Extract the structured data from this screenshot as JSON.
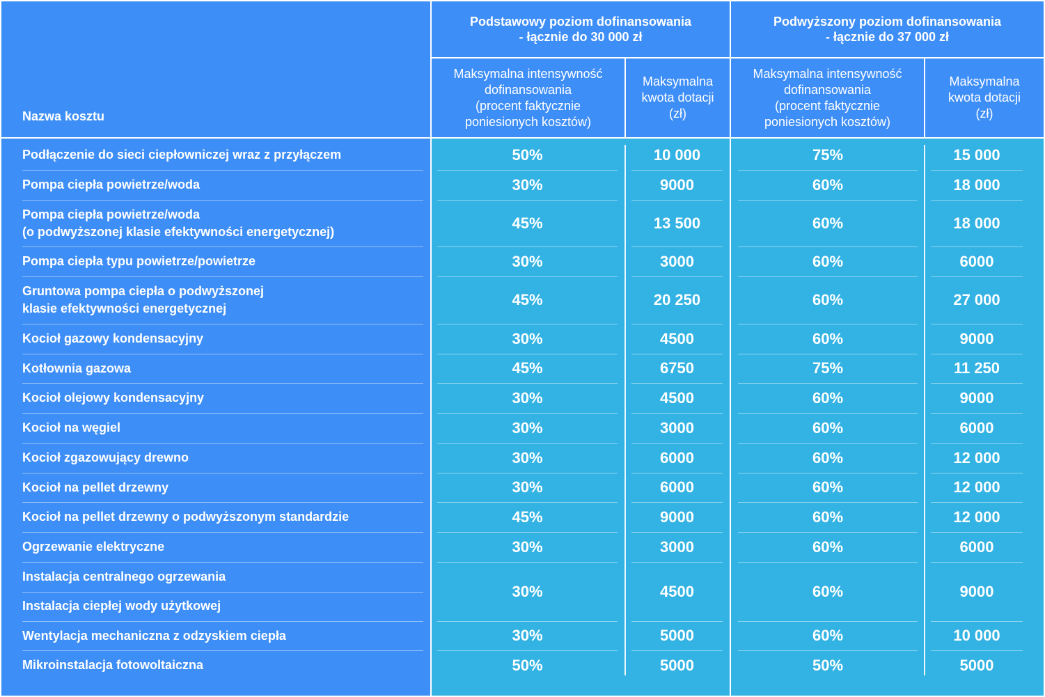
{
  "header": {
    "name_col": "Nazwa kosztu",
    "group_basic": [
      "Podstawowy poziom dofinansowania",
      "- łącznie do 30 000 zł"
    ],
    "group_increased": [
      "Podwyższony poziom dofinansowania",
      "- łącznie do 37 000 zł"
    ],
    "intensity_label": [
      "Maksymalna intensywność",
      "dofinansowania",
      "(procent faktycznie",
      "poniesionych kosztów)"
    ],
    "amount_label": [
      "Maksymalna",
      "kwota dotacji",
      "(zł)"
    ]
  },
  "rows": [
    {
      "name": [
        "Podłączenie do sieci ciepłowniczej wraz z przyłączem"
      ],
      "b_pct": "50%",
      "b_amt": "10 000",
      "i_pct": "75%",
      "i_amt": "15 000"
    },
    {
      "name": [
        "Pompa ciepła powietrze/woda"
      ],
      "b_pct": "30%",
      "b_amt": "9000",
      "i_pct": "60%",
      "i_amt": "18 000"
    },
    {
      "name": [
        "Pompa ciepła powietrze/woda",
        "(o podwyższonej klasie efektywności energetycznej)"
      ],
      "b_pct": "45%",
      "b_amt": "13 500",
      "i_pct": "60%",
      "i_amt": "18 000"
    },
    {
      "name": [
        "Pompa ciepła typu powietrze/powietrze"
      ],
      "b_pct": "30%",
      "b_amt": "3000",
      "i_pct": "60%",
      "i_amt": "6000"
    },
    {
      "name": [
        "Gruntowa pompa ciepła o podwyższonej",
        "klasie efektywności energetycznej"
      ],
      "b_pct": "45%",
      "b_amt": "20 250",
      "i_pct": "60%",
      "i_amt": "27 000"
    },
    {
      "name": [
        "Kocioł gazowy kondensacyjny"
      ],
      "b_pct": "30%",
      "b_amt": "4500",
      "i_pct": "60%",
      "i_amt": "9000"
    },
    {
      "name": [
        "Kotłownia gazowa"
      ],
      "b_pct": "45%",
      "b_amt": "6750",
      "i_pct": "75%",
      "i_amt": "11 250"
    },
    {
      "name": [
        "Kocioł olejowy kondensacyjny"
      ],
      "b_pct": "30%",
      "b_amt": "4500",
      "i_pct": "60%",
      "i_amt": "9000"
    },
    {
      "name": [
        "Kocioł na węgiel"
      ],
      "b_pct": "30%",
      "b_amt": "3000",
      "i_pct": "60%",
      "i_amt": "6000"
    },
    {
      "name": [
        "Kocioł zgazowujący drewno"
      ],
      "b_pct": "30%",
      "b_amt": "6000",
      "i_pct": "60%",
      "i_amt": "12 000"
    },
    {
      "name": [
        "Kocioł na pellet drzewny"
      ],
      "b_pct": "30%",
      "b_amt": "6000",
      "i_pct": "60%",
      "i_amt": "12 000"
    },
    {
      "name": [
        "Kocioł na pellet drzewny o podwyższonym standardzie"
      ],
      "b_pct": "45%",
      "b_amt": "9000",
      "i_pct": "60%",
      "i_amt": "12 000"
    },
    {
      "name": [
        "Ogrzewanie elektryczne"
      ],
      "b_pct": "30%",
      "b_amt": "3000",
      "i_pct": "60%",
      "i_amt": "6000"
    },
    {
      "name": [
        "Instalacja centralnego ogrzewania",
        "Instalacja ciepłej wody użytkowej"
      ],
      "b_pct": "30%",
      "b_amt": "4500",
      "i_pct": "60%",
      "i_amt": "9000"
    },
    {
      "name": [
        "Wentylacja mechaniczna z odzyskiem ciepła"
      ],
      "b_pct": "30%",
      "b_amt": "5000",
      "i_pct": "60%",
      "i_amt": "10 000"
    },
    {
      "name": [
        "Mikroinstalacja fotowoltaiczna"
      ],
      "b_pct": "50%",
      "b_amt": "5000",
      "i_pct": "50%",
      "i_amt": "5000"
    }
  ],
  "colors": {
    "header_blue": "#3e8ef7",
    "body_cyan": "#33b3e4",
    "text": "#ffffff"
  }
}
